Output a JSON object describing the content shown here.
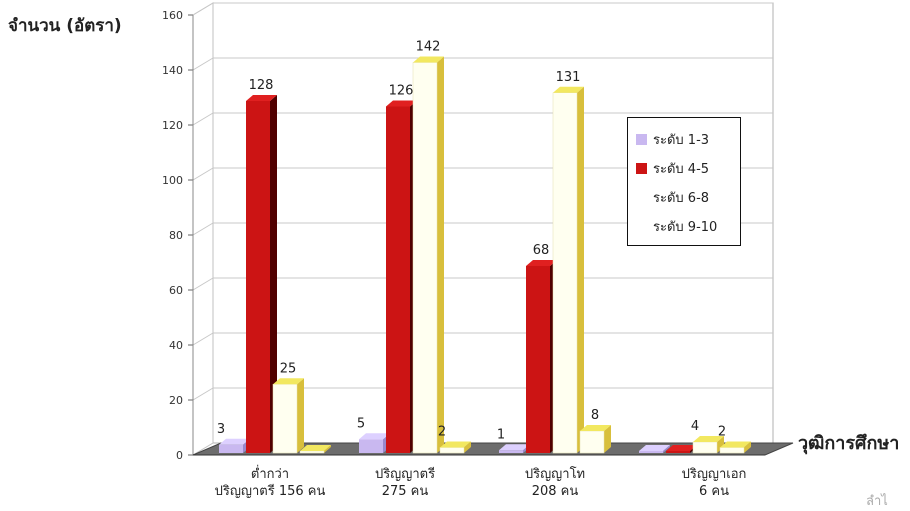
{
  "chart_data": {
    "type": "bar",
    "ylabel": "จำนวน (อัตรา)",
    "xlabel": "วุฒิการศึกษา",
    "ylim": [
      0,
      160
    ],
    "yticks": [
      0,
      20,
      40,
      60,
      80,
      100,
      120,
      140,
      160
    ],
    "categories": [
      {
        "line1": "ต่ำกว่า",
        "line2": "ปริญญาตรี 156 คน"
      },
      {
        "line1": "ปริญญาตรี",
        "line2": "275 คน"
      },
      {
        "line1": "ปริญญาโท",
        "line2": "208 คน"
      },
      {
        "line1": "ปริญญาเอก",
        "line2": "6 คน"
      }
    ],
    "series": [
      {
        "name": "ระดับ 1-3",
        "color": "#c9b8f0",
        "values": [
          3,
          5,
          1,
          0
        ],
        "labels": [
          "3",
          "5",
          "1",
          ""
        ]
      },
      {
        "name": "ระดับ 4-5",
        "color": "#cc1414",
        "values": [
          128,
          126,
          68,
          0
        ],
        "labels": [
          "128",
          "126",
          "68",
          ""
        ]
      },
      {
        "name": "ระดับ 6-8",
        "color": "#fffff2",
        "values": [
          25,
          142,
          131,
          4
        ],
        "labels": [
          "25",
          "142",
          "131",
          "4"
        ]
      },
      {
        "name": "ระดับ 9-10",
        "color": "#fffff2",
        "values": [
          0,
          2,
          8,
          2
        ],
        "labels": [
          "",
          "2",
          "8",
          "2"
        ]
      }
    ],
    "grid": true,
    "legend": "right"
  },
  "corner_text": "ลำไ"
}
